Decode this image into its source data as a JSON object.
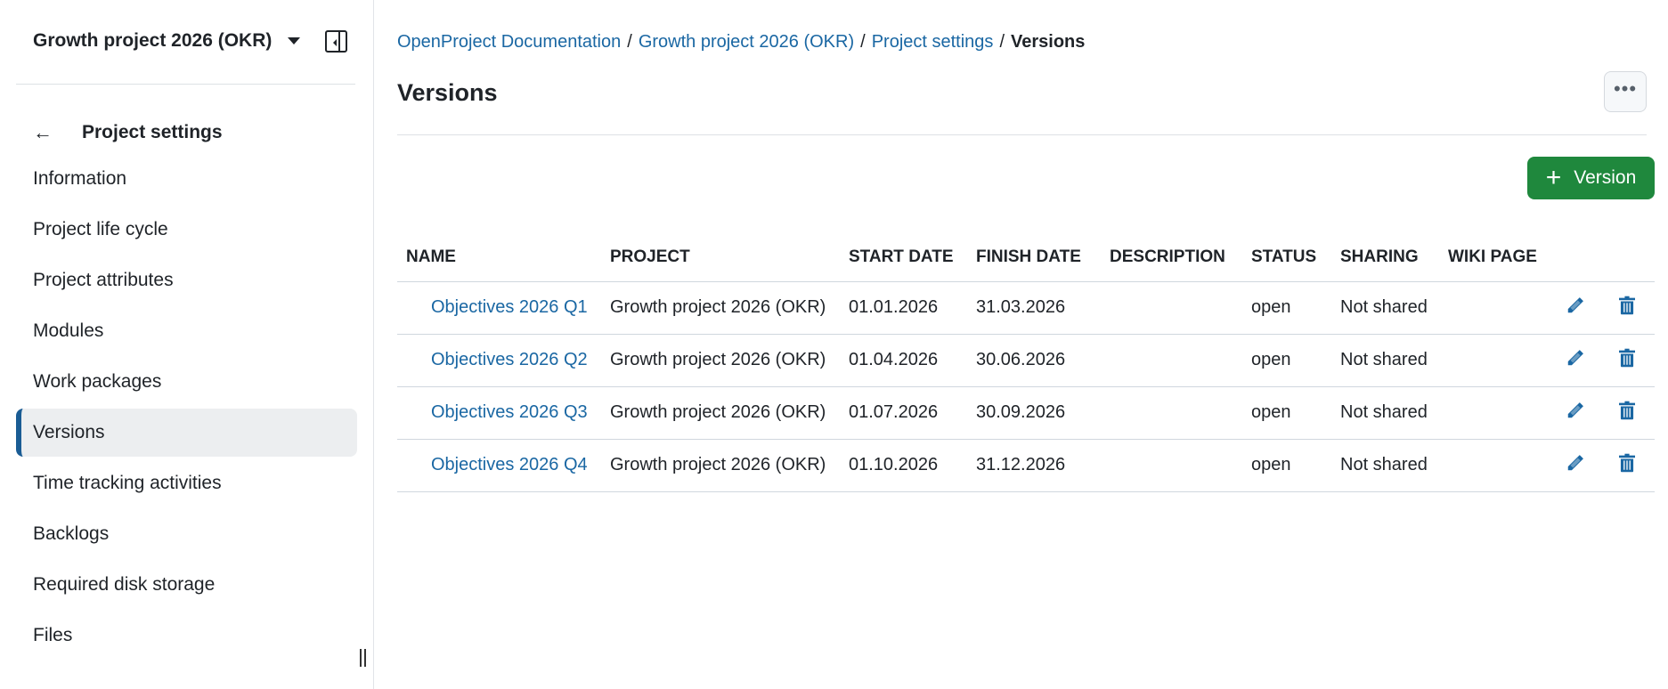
{
  "sidebar": {
    "project": "Growth project 2026 (OKR)",
    "back_label": "Project settings",
    "items": [
      {
        "label": "Information"
      },
      {
        "label": "Project life cycle"
      },
      {
        "label": "Project attributes"
      },
      {
        "label": "Modules"
      },
      {
        "label": "Work packages"
      },
      {
        "label": "Versions",
        "active": true
      },
      {
        "label": "Time tracking activities"
      },
      {
        "label": "Backlogs"
      },
      {
        "label": "Required disk storage"
      },
      {
        "label": "Files"
      }
    ]
  },
  "breadcrumb": [
    "OpenProject Documentation",
    "Growth project 2026 (OKR)",
    "Project settings",
    "Versions"
  ],
  "page": {
    "title": "Versions",
    "more_label": "•••",
    "add_plus": "+",
    "add_label": "Version"
  },
  "table": {
    "headers": [
      "Name",
      "Project",
      "Start date",
      "Finish date",
      "Description",
      "Status",
      "Sharing",
      "Wiki page"
    ],
    "rows": [
      [
        "Objectives 2026 Q1",
        "Growth project 2026 (OKR)",
        "01.01.2026",
        "31.03.2026",
        "",
        "open",
        "Not shared",
        ""
      ],
      [
        "Objectives 2026 Q2",
        "Growth project 2026 (OKR)",
        "01.04.2026",
        "30.06.2026",
        "",
        "open",
        "Not shared",
        ""
      ],
      [
        "Objectives 2026 Q3",
        "Growth project 2026 (OKR)",
        "01.07.2026",
        "30.09.2026",
        "",
        "open",
        "Not shared",
        ""
      ],
      [
        "Objectives 2026 Q4",
        "Growth project 2026 (OKR)",
        "01.10.2026",
        "31.12.2026",
        "",
        "open",
        "Not shared",
        ""
      ]
    ]
  },
  "colors": {
    "accent": "#1a67a3",
    "primary_button": "#1f883d",
    "active_marker": "#1a5c94"
  }
}
